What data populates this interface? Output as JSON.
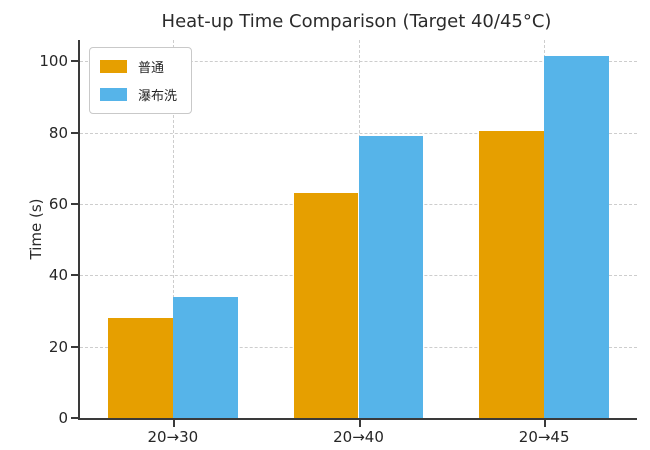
{
  "chart_data": {
    "type": "bar",
    "title": "Heat-up Time Comparison (Target 40/45°C)",
    "xlabel": "",
    "ylabel": "Time (s)",
    "categories": [
      "20→30",
      "20→40",
      "20→45"
    ],
    "series": [
      {
        "name": "普通",
        "color": "#E69F00",
        "values": [
          28,
          63,
          80.5
        ]
      },
      {
        "name": "瀑布洗",
        "color": "#56B4E9",
        "values": [
          34,
          79,
          101.5
        ]
      }
    ],
    "yticks": [
      0,
      20,
      40,
      60,
      80,
      100
    ],
    "ylim": [
      0,
      106
    ],
    "grid": "both-dashed",
    "legend_position": "upper-left",
    "colors": {
      "spine": "#3a3a3a",
      "gridline": "#cdcdcd",
      "text": "#262626",
      "background": "#ffffff"
    }
  }
}
